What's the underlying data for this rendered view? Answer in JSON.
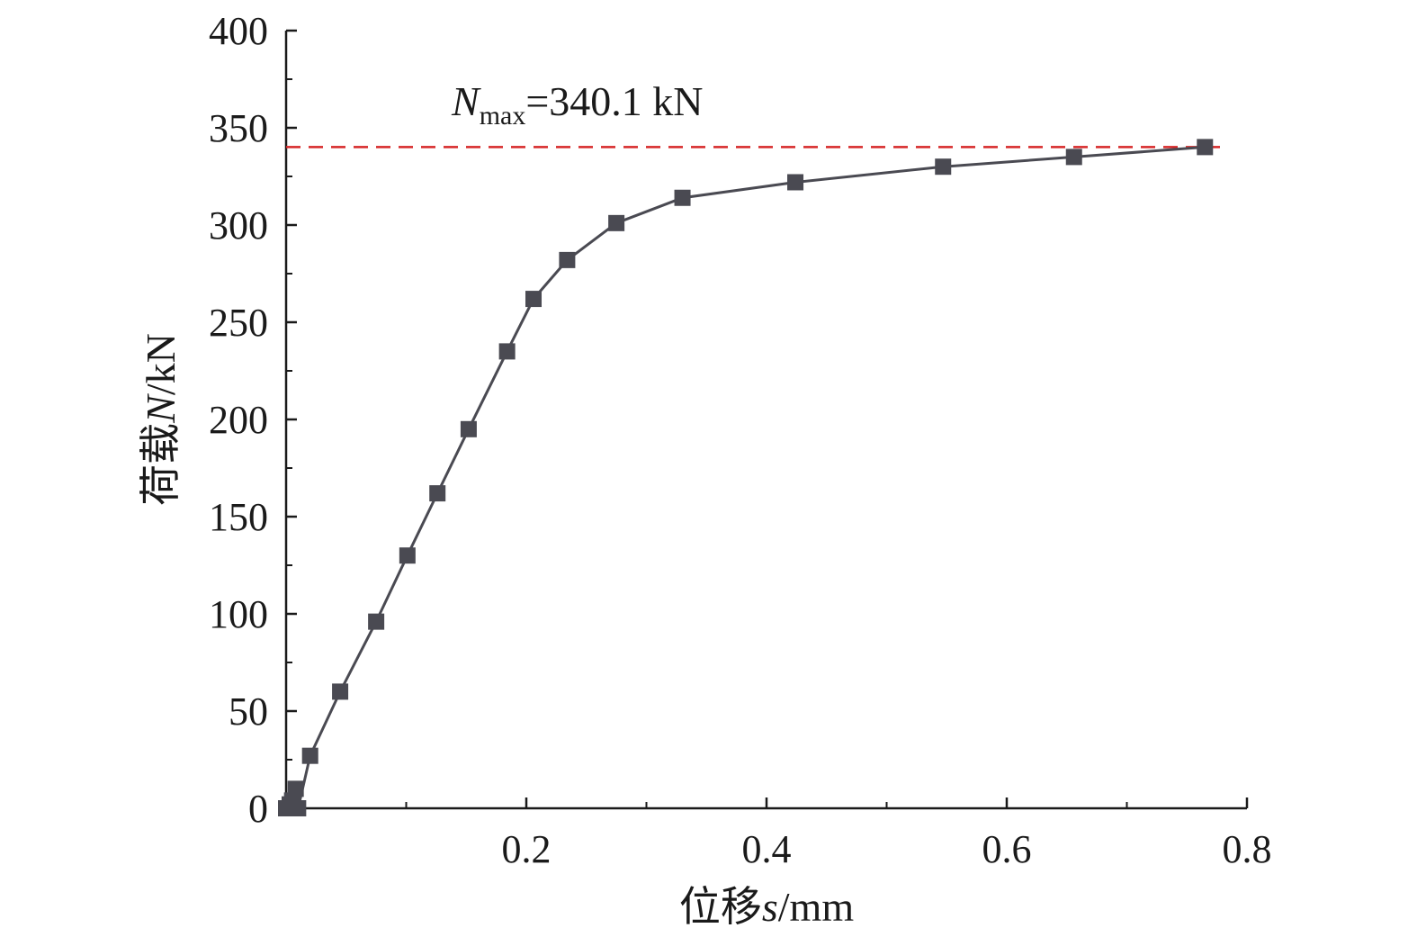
{
  "chart_data": {
    "type": "line",
    "title": "",
    "xlabel": {
      "prefix": "位移",
      "symbol": "s",
      "unit": "/mm"
    },
    "ylabel": {
      "prefix": "荷载",
      "symbol": "N",
      "unit": "/kN"
    },
    "xlim": [
      0,
      0.8
    ],
    "ylim": [
      0,
      400
    ],
    "x_ticks": [
      0.2,
      0.4,
      0.6,
      0.8
    ],
    "x_tick_labels": [
      "0.2",
      "0.4",
      "0.6",
      "0.8"
    ],
    "x_minor_ticks": [
      0.1,
      0.3,
      0.5,
      0.7
    ],
    "y_ticks": [
      0,
      50,
      100,
      150,
      200,
      250,
      300,
      350,
      400
    ],
    "y_tick_labels": [
      "0",
      "50",
      "100",
      "150",
      "200",
      "250",
      "300",
      "350",
      "400"
    ],
    "y_minor_ticks": [
      25,
      75,
      125,
      175,
      225,
      275,
      325,
      375
    ],
    "grid": false,
    "legend": "none",
    "series": [
      {
        "marker": "square",
        "color": "#4a4a52",
        "x": [
          0.0,
          0.003,
          0.005,
          0.008,
          0.01,
          0.02,
          0.045,
          0.075,
          0.101,
          0.126,
          0.152,
          0.184,
          0.206,
          0.234,
          0.275,
          0.33,
          0.424,
          0.547,
          0.656,
          0.765
        ],
        "y": [
          0,
          2,
          4,
          10,
          0,
          27,
          60,
          96,
          130,
          162,
          195,
          235,
          262,
          282,
          301,
          314,
          322,
          330,
          335,
          340.1
        ]
      }
    ],
    "reference_line": {
      "y": 340.1,
      "color": "#d62728",
      "style": "dashed"
    },
    "annotation": {
      "symbol": "N",
      "subscript": "max",
      "text": "=340.1 kN"
    }
  }
}
